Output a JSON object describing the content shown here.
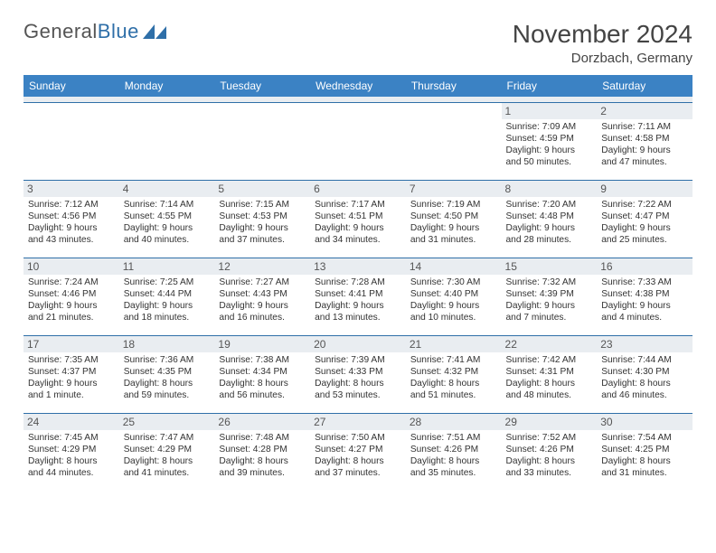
{
  "brand": {
    "name_part1": "General",
    "name_part2": "Blue",
    "logo_color": "#2f6fa8",
    "text_color": "#555555"
  },
  "title": "November 2024",
  "location": "Dorzbach, Germany",
  "colors": {
    "header_bg": "#3b82c4",
    "header_text": "#ffffff",
    "daynum_bg": "#e9edf1",
    "border": "#2f6fa8",
    "body_text": "#333333"
  },
  "fonts": {
    "title_size": 28,
    "location_size": 15,
    "dayhead_size": 12,
    "detail_size": 10.2
  },
  "day_headers": [
    "Sunday",
    "Monday",
    "Tuesday",
    "Wednesday",
    "Thursday",
    "Friday",
    "Saturday"
  ],
  "weeks": [
    [
      null,
      null,
      null,
      null,
      null,
      {
        "n": "1",
        "sunrise": "7:09 AM",
        "sunset": "4:59 PM",
        "daylight": "9 hours and 50 minutes."
      },
      {
        "n": "2",
        "sunrise": "7:11 AM",
        "sunset": "4:58 PM",
        "daylight": "9 hours and 47 minutes."
      }
    ],
    [
      {
        "n": "3",
        "sunrise": "7:12 AM",
        "sunset": "4:56 PM",
        "daylight": "9 hours and 43 minutes."
      },
      {
        "n": "4",
        "sunrise": "7:14 AM",
        "sunset": "4:55 PM",
        "daylight": "9 hours and 40 minutes."
      },
      {
        "n": "5",
        "sunrise": "7:15 AM",
        "sunset": "4:53 PM",
        "daylight": "9 hours and 37 minutes."
      },
      {
        "n": "6",
        "sunrise": "7:17 AM",
        "sunset": "4:51 PM",
        "daylight": "9 hours and 34 minutes."
      },
      {
        "n": "7",
        "sunrise": "7:19 AM",
        "sunset": "4:50 PM",
        "daylight": "9 hours and 31 minutes."
      },
      {
        "n": "8",
        "sunrise": "7:20 AM",
        "sunset": "4:48 PM",
        "daylight": "9 hours and 28 minutes."
      },
      {
        "n": "9",
        "sunrise": "7:22 AM",
        "sunset": "4:47 PM",
        "daylight": "9 hours and 25 minutes."
      }
    ],
    [
      {
        "n": "10",
        "sunrise": "7:24 AM",
        "sunset": "4:46 PM",
        "daylight": "9 hours and 21 minutes."
      },
      {
        "n": "11",
        "sunrise": "7:25 AM",
        "sunset": "4:44 PM",
        "daylight": "9 hours and 18 minutes."
      },
      {
        "n": "12",
        "sunrise": "7:27 AM",
        "sunset": "4:43 PM",
        "daylight": "9 hours and 16 minutes."
      },
      {
        "n": "13",
        "sunrise": "7:28 AM",
        "sunset": "4:41 PM",
        "daylight": "9 hours and 13 minutes."
      },
      {
        "n": "14",
        "sunrise": "7:30 AM",
        "sunset": "4:40 PM",
        "daylight": "9 hours and 10 minutes."
      },
      {
        "n": "15",
        "sunrise": "7:32 AM",
        "sunset": "4:39 PM",
        "daylight": "9 hours and 7 minutes."
      },
      {
        "n": "16",
        "sunrise": "7:33 AM",
        "sunset": "4:38 PM",
        "daylight": "9 hours and 4 minutes."
      }
    ],
    [
      {
        "n": "17",
        "sunrise": "7:35 AM",
        "sunset": "4:37 PM",
        "daylight": "9 hours and 1 minute."
      },
      {
        "n": "18",
        "sunrise": "7:36 AM",
        "sunset": "4:35 PM",
        "daylight": "8 hours and 59 minutes."
      },
      {
        "n": "19",
        "sunrise": "7:38 AM",
        "sunset": "4:34 PM",
        "daylight": "8 hours and 56 minutes."
      },
      {
        "n": "20",
        "sunrise": "7:39 AM",
        "sunset": "4:33 PM",
        "daylight": "8 hours and 53 minutes."
      },
      {
        "n": "21",
        "sunrise": "7:41 AM",
        "sunset": "4:32 PM",
        "daylight": "8 hours and 51 minutes."
      },
      {
        "n": "22",
        "sunrise": "7:42 AM",
        "sunset": "4:31 PM",
        "daylight": "8 hours and 48 minutes."
      },
      {
        "n": "23",
        "sunrise": "7:44 AM",
        "sunset": "4:30 PM",
        "daylight": "8 hours and 46 minutes."
      }
    ],
    [
      {
        "n": "24",
        "sunrise": "7:45 AM",
        "sunset": "4:29 PM",
        "daylight": "8 hours and 44 minutes."
      },
      {
        "n": "25",
        "sunrise": "7:47 AM",
        "sunset": "4:29 PM",
        "daylight": "8 hours and 41 minutes."
      },
      {
        "n": "26",
        "sunrise": "7:48 AM",
        "sunset": "4:28 PM",
        "daylight": "8 hours and 39 minutes."
      },
      {
        "n": "27",
        "sunrise": "7:50 AM",
        "sunset": "4:27 PM",
        "daylight": "8 hours and 37 minutes."
      },
      {
        "n": "28",
        "sunrise": "7:51 AM",
        "sunset": "4:26 PM",
        "daylight": "8 hours and 35 minutes."
      },
      {
        "n": "29",
        "sunrise": "7:52 AM",
        "sunset": "4:26 PM",
        "daylight": "8 hours and 33 minutes."
      },
      {
        "n": "30",
        "sunrise": "7:54 AM",
        "sunset": "4:25 PM",
        "daylight": "8 hours and 31 minutes."
      }
    ]
  ],
  "labels": {
    "sunrise": "Sunrise: ",
    "sunset": "Sunset: ",
    "daylight": "Daylight: "
  }
}
